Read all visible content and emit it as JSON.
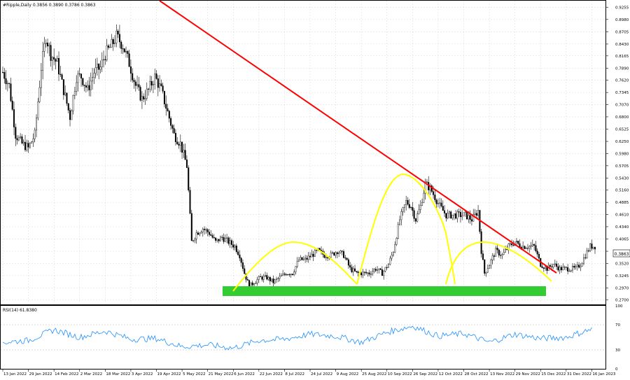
{
  "header": {
    "symbol_line": "#Ripple,Daily  0.3856 0.3890 0.3786 0.3863"
  },
  "rsi_panel": {
    "label": "RSI(14) 61.8380",
    "levels": [
      70,
      30
    ],
    "ticks": [
      "100",
      "70",
      "30",
      "0"
    ]
  },
  "colors": {
    "candle": "#000000",
    "trendline": "#ff0000",
    "pattern": "#ffff00",
    "support_zone": "#33cc33",
    "rsi": "#1e90ff",
    "grid": "#d9d9d9",
    "price_tag_bg": "#ffffff"
  },
  "chart_data": [
    {
      "type": "candlestick",
      "title": "#Ripple,Daily",
      "ohlc_last": {
        "open": 0.3856,
        "high": 0.389,
        "low": 0.3786,
        "close": 0.3863
      },
      "current_price_label": "0.3863",
      "ylim": [
        0.26,
        0.94
      ],
      "y_ticks": [
        "0.9255",
        "0.8980",
        "0.8705",
        "0.8430",
        "0.8165",
        "0.7890",
        "0.7620",
        "0.7345",
        "0.7070",
        "0.6800",
        "0.6525",
        "0.6250",
        "0.5980",
        "0.5705",
        "0.5430",
        "0.5160",
        "0.4885",
        "0.4610",
        "0.4340",
        "0.4065",
        "0.3790",
        "0.3520",
        "0.3245",
        "0.2970",
        "0.2700"
      ],
      "x_ticks": [
        "13 Jan 2022",
        "29 Jan 2022",
        "14 Feb 2022",
        "2 Mar 2022",
        "18 Mar 2022",
        "3 Apr 2022",
        "19 Apr 2022",
        "5 May 2022",
        "21 May 2022",
        "6 Jun 2022",
        "22 Jun 2022",
        "8 Jul 2022",
        "24 Jul 2022",
        "9 Aug 2022",
        "25 Aug 2022",
        "10 Sep 2022",
        "26 Sep 2022",
        "12 Oct 2022",
        "28 Oct 2022",
        "13 Nov 2022",
        "29 Nov 2022",
        "15 Dec 2022",
        "31 Dec 2022",
        "16 Jan 2023"
      ],
      "close_path": [
        [
          "13 Jan 2022",
          0.78
        ],
        [
          "17 Jan 2022",
          0.75
        ],
        [
          "21 Jan 2022",
          0.64
        ],
        [
          "25 Jan 2022",
          0.62
        ],
        [
          "29 Jan 2022",
          0.61
        ],
        [
          "2 Feb 2022",
          0.64
        ],
        [
          "6 Feb 2022",
          0.79
        ],
        [
          "9 Feb 2022",
          0.86
        ],
        [
          "12 Feb 2022",
          0.82
        ],
        [
          "16 Feb 2022",
          0.8
        ],
        [
          "20 Feb 2022",
          0.74
        ],
        [
          "24 Feb 2022",
          0.68
        ],
        [
          "28 Feb 2022",
          0.77
        ],
        [
          "3 Mar 2022",
          0.77
        ],
        [
          "7 Mar 2022",
          0.74
        ],
        [
          "11 Mar 2022",
          0.78
        ],
        [
          "15 Mar 2022",
          0.79
        ],
        [
          "18 Mar 2022",
          0.82
        ],
        [
          "22 Mar 2022",
          0.84
        ],
        [
          "25 Mar 2022",
          0.86
        ],
        [
          "29 Mar 2022",
          0.84
        ],
        [
          "2 Apr 2022",
          0.8
        ],
        [
          "6 Apr 2022",
          0.75
        ],
        [
          "10 Apr 2022",
          0.72
        ],
        [
          "14 Apr 2022",
          0.74
        ],
        [
          "18 Apr 2022",
          0.77
        ],
        [
          "22 Apr 2022",
          0.74
        ],
        [
          "26 Apr 2022",
          0.69
        ],
        [
          "30 Apr 2022",
          0.64
        ],
        [
          "4 May 2022",
          0.62
        ],
        [
          "8 May 2022",
          0.57
        ],
        [
          "11 May 2022",
          0.4
        ],
        [
          "14 May 2022",
          0.42
        ],
        [
          "18 May 2022",
          0.43
        ],
        [
          "22 May 2022",
          0.42
        ],
        [
          "26 May 2022",
          0.4
        ],
        [
          "30 May 2022",
          0.41
        ],
        [
          "3 Jun 2022",
          0.4
        ],
        [
          "7 Jun 2022",
          0.39
        ],
        [
          "10 Jun 2022",
          0.37
        ],
        [
          "13 Jun 2022",
          0.33
        ],
        [
          "16 Jun 2022",
          0.3
        ],
        [
          "19 Jun 2022",
          0.31
        ],
        [
          "23 Jun 2022",
          0.32
        ],
        [
          "27 Jun 2022",
          0.32
        ],
        [
          "1 Jul 2022",
          0.31
        ],
        [
          "5 Jul 2022",
          0.32
        ],
        [
          "9 Jul 2022",
          0.33
        ],
        [
          "13 Jul 2022",
          0.33
        ],
        [
          "17 Jul 2022",
          0.36
        ],
        [
          "21 Jul 2022",
          0.36
        ],
        [
          "25 Jul 2022",
          0.37
        ],
        [
          "29 Jul 2022",
          0.38
        ],
        [
          "2 Aug 2022",
          0.37
        ],
        [
          "6 Aug 2022",
          0.37
        ],
        [
          "10 Aug 2022",
          0.38
        ],
        [
          "14 Aug 2022",
          0.37
        ],
        [
          "18 Aug 2022",
          0.34
        ],
        [
          "22 Aug 2022",
          0.33
        ],
        [
          "26 Aug 2022",
          0.33
        ],
        [
          "30 Aug 2022",
          0.33
        ],
        [
          "3 Sep 2022",
          0.34
        ],
        [
          "7 Sep 2022",
          0.33
        ],
        [
          "11 Sep 2022",
          0.35
        ],
        [
          "14 Sep 2022",
          0.38
        ],
        [
          "18 Sep 2022",
          0.45
        ],
        [
          "22 Sep 2022",
          0.49
        ],
        [
          "25 Sep 2022",
          0.48
        ],
        [
          "28 Sep 2022",
          0.45
        ],
        [
          "1 Oct 2022",
          0.48
        ],
        [
          "4 Oct 2022",
          0.53
        ],
        [
          "7 Oct 2022",
          0.52
        ],
        [
          "10 Oct 2022",
          0.5
        ],
        [
          "13 Oct 2022",
          0.48
        ],
        [
          "17 Oct 2022",
          0.46
        ],
        [
          "21 Oct 2022",
          0.46
        ],
        [
          "25 Oct 2022",
          0.46
        ],
        [
          "29 Oct 2022",
          0.46
        ],
        [
          "2 Nov 2022",
          0.45
        ],
        [
          "6 Nov 2022",
          0.47
        ],
        [
          "8 Nov 2022",
          0.38
        ],
        [
          "10 Nov 2022",
          0.33
        ],
        [
          "13 Nov 2022",
          0.35
        ],
        [
          "17 Nov 2022",
          0.38
        ],
        [
          "21 Nov 2022",
          0.37
        ],
        [
          "25 Nov 2022",
          0.39
        ],
        [
          "29 Nov 2022",
          0.4
        ],
        [
          "3 Dec 2022",
          0.39
        ],
        [
          "7 Dec 2022",
          0.39
        ],
        [
          "11 Dec 2022",
          0.39
        ],
        [
          "15 Dec 2022",
          0.35
        ],
        [
          "19 Dec 2022",
          0.34
        ],
        [
          "23 Dec 2022",
          0.35
        ],
        [
          "27 Dec 2022",
          0.34
        ],
        [
          "31 Dec 2022",
          0.34
        ],
        [
          "3 Jan 2023",
          0.34
        ],
        [
          "6 Jan 2023",
          0.34
        ],
        [
          "9 Jan 2023",
          0.35
        ],
        [
          "12 Jan 2023",
          0.37
        ],
        [
          "15 Jan 2023",
          0.39
        ],
        [
          "18 Jan 2023",
          0.39
        ]
      ]
    },
    {
      "type": "line",
      "title": "RSI(14)",
      "ylim": [
        0,
        100
      ],
      "y_ticks": [
        "100",
        "70",
        "30",
        "0"
      ],
      "x": [
        "13 Jan 2022",
        "29 Jan 2022",
        "14 Feb 2022",
        "2 Mar 2022",
        "18 Mar 2022",
        "3 Apr 2022",
        "19 Apr 2022",
        "5 May 2022",
        "21 May 2022",
        "6 Jun 2022",
        "22 Jun 2022",
        "8 Jul 2022",
        "24 Jul 2022",
        "9 Aug 2022",
        "25 Aug 2022",
        "10 Sep 2022",
        "26 Sep 2022",
        "12 Oct 2022",
        "28 Oct 2022",
        "13 Nov 2022",
        "29 Nov 2022",
        "15 Dec 2022",
        "31 Dec 2022",
        "16 Jan 2023"
      ],
      "values": [
        42,
        45,
        62,
        50,
        60,
        47,
        48,
        35,
        38,
        33,
        45,
        47,
        55,
        52,
        42,
        58,
        68,
        52,
        56,
        42,
        55,
        48,
        50,
        63
      ]
    }
  ]
}
